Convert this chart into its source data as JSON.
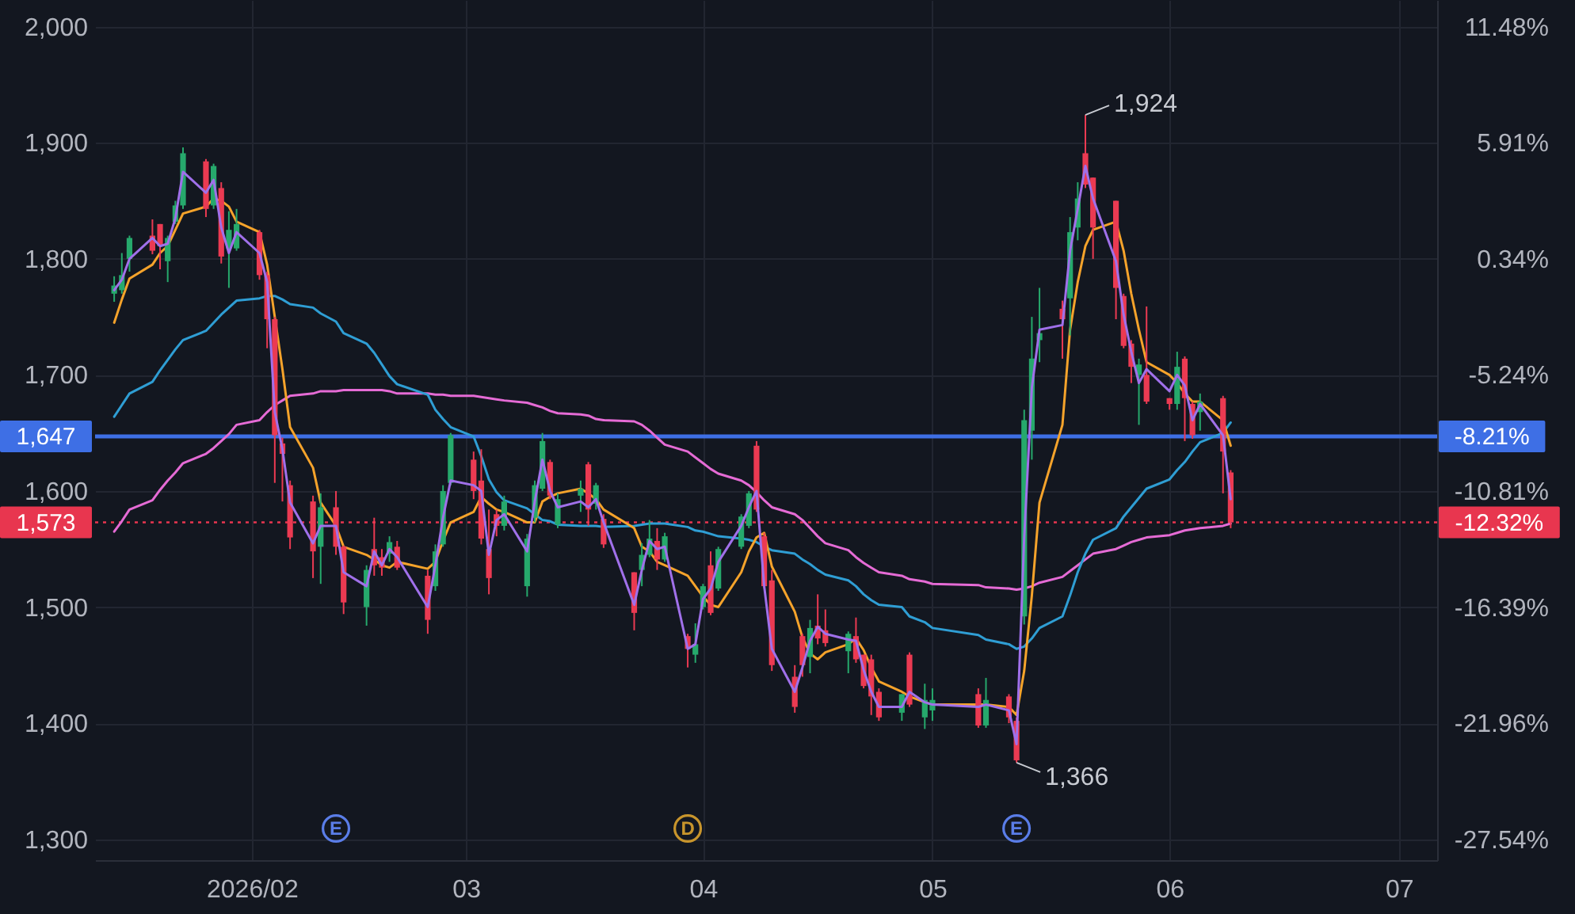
{
  "chart_data": {
    "type": "candlestick",
    "x": [
      "2026-01-14",
      "2026-01-15",
      "2026-01-16",
      "2026-01-19",
      "2026-01-20",
      "2026-01-21",
      "2026-01-22",
      "2026-01-23",
      "2026-01-26",
      "2026-01-27",
      "2026-01-28",
      "2026-01-29",
      "2026-01-30",
      "2026-02-02",
      "2026-02-03",
      "2026-02-04",
      "2026-02-05",
      "2026-02-06",
      "2026-02-09",
      "2026-02-10",
      "2026-02-12",
      "2026-02-13",
      "2026-02-16",
      "2026-02-17",
      "2026-02-18",
      "2026-02-19",
      "2026-02-20",
      "2026-02-24",
      "2026-02-25",
      "2026-02-26",
      "2026-02-27",
      "2026-03-02",
      "2026-03-03",
      "2026-03-04",
      "2026-03-05",
      "2026-03-06",
      "2026-03-09",
      "2026-03-10",
      "2026-03-11",
      "2026-03-12",
      "2026-03-13",
      "2026-03-16",
      "2026-03-17",
      "2026-03-18",
      "2026-03-19",
      "2026-03-23",
      "2026-03-24",
      "2026-03-25",
      "2026-03-26",
      "2026-03-27",
      "2026-03-30",
      "2026-03-31",
      "2026-04-01",
      "2026-04-02",
      "2026-04-03",
      "2026-04-06",
      "2026-04-07",
      "2026-04-08",
      "2026-04-09",
      "2026-04-10",
      "2026-04-13",
      "2026-04-14",
      "2026-04-15",
      "2026-04-16",
      "2026-04-17",
      "2026-04-20",
      "2026-04-21",
      "2026-04-22",
      "2026-04-23",
      "2026-04-24",
      "2026-04-27",
      "2026-04-28",
      "2026-04-30",
      "2026-05-01",
      "2026-05-07",
      "2026-05-08",
      "2026-05-11",
      "2026-05-12",
      "2026-05-13",
      "2026-05-14",
      "2026-05-15",
      "2026-05-18",
      "2026-05-19",
      "2026-05-20",
      "2026-05-21",
      "2026-05-22",
      "2026-05-25",
      "2026-05-26",
      "2026-05-27",
      "2026-05-28",
      "2026-05-29",
      "2026-06-01",
      "2026-06-02",
      "2026-06-03",
      "2026-06-04",
      "2026-06-05",
      "2026-06-08",
      "2026-06-09"
    ],
    "ohlc": [
      [
        1770,
        1785,
        1763,
        1777
      ],
      [
        1773,
        1805,
        1770,
        1786
      ],
      [
        1800,
        1820,
        1789,
        1818
      ],
      [
        1820,
        1834,
        1804,
        1807
      ],
      [
        1830,
        1830,
        1791,
        1811
      ],
      [
        1798,
        1820,
        1780,
        1818
      ],
      [
        1832,
        1850,
        1830,
        1846
      ],
      [
        1846,
        1896,
        1843,
        1891
      ],
      [
        1884,
        1886,
        1836,
        1843
      ],
      [
        1846,
        1882,
        1843,
        1880
      ],
      [
        1861,
        1866,
        1796,
        1802
      ],
      [
        1809,
        1841,
        1775,
        1825
      ],
      [
        1809,
        1843,
        1807,
        1830
      ],
      [
        1823,
        1825,
        1782,
        1786
      ],
      [
        1786,
        1789,
        1723,
        1748
      ],
      [
        1748,
        1750,
        1607,
        1648
      ],
      [
        1641,
        1646,
        1591,
        1632
      ],
      [
        1605,
        1609,
        1550,
        1560
      ],
      [
        1591,
        1596,
        1525,
        1548
      ],
      [
        1552,
        1598,
        1520,
        1586
      ],
      [
        1586,
        1600,
        1545,
        1552
      ],
      [
        1552,
        1553,
        1494,
        1504
      ],
      [
        1500,
        1536,
        1484,
        1532
      ],
      [
        1550,
        1577,
        1527,
        1536
      ],
      [
        1543,
        1550,
        1527,
        1534
      ],
      [
        1546,
        1561,
        1539,
        1556
      ],
      [
        1552,
        1557,
        1532,
        1534
      ],
      [
        1527,
        1532,
        1477,
        1489
      ],
      [
        1518,
        1554,
        1514,
        1548
      ],
      [
        1554,
        1605,
        1552,
        1600
      ],
      [
        1607,
        1650,
        1605,
        1648
      ],
      [
        1627,
        1634,
        1593,
        1600
      ],
      [
        1609,
        1636,
        1554,
        1559
      ],
      [
        1550,
        1584,
        1511,
        1525
      ],
      [
        1580,
        1584,
        1561,
        1570
      ],
      [
        1570,
        1596,
        1566,
        1591
      ],
      [
        1518,
        1563,
        1509,
        1559
      ],
      [
        1577,
        1609,
        1573,
        1605
      ],
      [
        1602,
        1650,
        1600,
        1643
      ],
      [
        1625,
        1627,
        1593,
        1596
      ],
      [
        1571,
        1598,
        1568,
        1593
      ],
      [
        1596,
        1609,
        1582,
        1602
      ],
      [
        1623,
        1625,
        1570,
        1584
      ],
      [
        1589,
        1607,
        1584,
        1605
      ],
      [
        1576,
        1580,
        1551,
        1554
      ],
      [
        1530,
        1530,
        1480,
        1495
      ],
      [
        1532,
        1555,
        1518,
        1545
      ],
      [
        1545,
        1575,
        1543,
        1559
      ],
      [
        1557,
        1568,
        1532,
        1541
      ],
      [
        1541,
        1564,
        1539,
        1561
      ],
      [
        1475,
        1477,
        1448,
        1464
      ],
      [
        1459,
        1486,
        1452,
        1468
      ],
      [
        1500,
        1520,
        1498,
        1518
      ],
      [
        1536,
        1548,
        1493,
        1495
      ],
      [
        1516,
        1552,
        1514,
        1550
      ],
      [
        1552,
        1580,
        1550,
        1578
      ],
      [
        1570,
        1600,
        1568,
        1598
      ],
      [
        1639,
        1643,
        1582,
        1584
      ],
      [
        1561,
        1564,
        1516,
        1518
      ],
      [
        1523,
        1532,
        1445,
        1450
      ],
      [
        1440,
        1450,
        1409,
        1414
      ],
      [
        1475,
        1477,
        1440,
        1450
      ],
      [
        1457,
        1489,
        1443,
        1482
      ],
      [
        1484,
        1511,
        1468,
        1473
      ],
      [
        1480,
        1498,
        1466,
        1469
      ],
      [
        1462,
        1479,
        1443,
        1477
      ],
      [
        1475,
        1491,
        1452,
        1455
      ],
      [
        1459,
        1459,
        1430,
        1432
      ],
      [
        1455,
        1459,
        1407,
        1423
      ],
      [
        1427,
        1430,
        1402,
        1405
      ],
      [
        1409,
        1425,
        1402,
        1425
      ],
      [
        1459,
        1461,
        1414,
        1416
      ],
      [
        1405,
        1434,
        1395,
        1420
      ],
      [
        1411,
        1430,
        1402,
        1420
      ],
      [
        1425,
        1430,
        1396,
        1398
      ],
      [
        1398,
        1439,
        1396,
        1420
      ],
      [
        1423,
        1425,
        1400,
        1405
      ],
      [
        1402,
        1405,
        1366,
        1368
      ],
      [
        1492,
        1670,
        1485,
        1661
      ],
      [
        1652,
        1750,
        1627,
        1714
      ],
      [
        1730,
        1775,
        1711,
        1736
      ],
      [
        1757,
        1764,
        1714,
        1748
      ],
      [
        1766,
        1836,
        1734,
        1823
      ],
      [
        1827,
        1866,
        1816,
        1852
      ],
      [
        1891,
        1924,
        1861,
        1864
      ],
      [
        1870,
        1870,
        1800,
        1827
      ],
      [
        1850,
        1850,
        1748,
        1775
      ],
      [
        1768,
        1770,
        1723,
        1725
      ],
      [
        1727,
        1730,
        1693,
        1707
      ],
      [
        1700,
        1714,
        1657,
        1709
      ],
      [
        1700,
        1759,
        1675,
        1677
      ],
      [
        1680,
        1680,
        1670,
        1675
      ],
      [
        1675,
        1720,
        1670,
        1707
      ],
      [
        1714,
        1716,
        1643,
        1680
      ],
      [
        1675,
        1677,
        1645,
        1648
      ],
      [
        1668,
        1684,
        1652,
        1677
      ],
      [
        1680,
        1682,
        1598,
        1634
      ],
      [
        1616,
        1618,
        1568,
        1573
      ]
    ],
    "colors": [
      "#26a96c",
      "#26a96c",
      "#26a96c",
      "#eb3a52",
      "#eb3a52",
      "#26a96c",
      "#26a96c",
      "#26a96c",
      "#eb3a52",
      "#26a96c",
      "#eb3a52",
      "#26a96c",
      "#26a96c",
      "#eb3a52",
      "#eb3a52",
      "#eb3a52",
      "#eb3a52",
      "#eb3a52",
      "#eb3a52",
      "#26a96c",
      "#eb3a52",
      "#eb3a52",
      "#26a96c",
      "#eb3a52",
      "#eb3a52",
      "#26a96c",
      "#eb3a52",
      "#eb3a52",
      "#26a96c",
      "#26a96c",
      "#26a96c",
      "#eb3a52",
      "#eb3a52",
      "#eb3a52",
      "#eb3a52",
      "#26a96c",
      "#26a96c",
      "#26a96c",
      "#26a96c",
      "#eb3a52",
      "#26a96c",
      "#26a96c",
      "#eb3a52",
      "#26a96c",
      "#eb3a52",
      "#eb3a52",
      "#26a96c",
      "#26a96c",
      "#eb3a52",
      "#26a96c",
      "#eb3a52",
      "#26a96c",
      "#26a96c",
      "#eb3a52",
      "#26a96c",
      "#26a96c",
      "#26a96c",
      "#eb3a52",
      "#eb3a52",
      "#eb3a52",
      "#eb3a52",
      "#eb3a52",
      "#26a96c",
      "#eb3a52",
      "#eb3a52",
      "#26a96c",
      "#eb3a52",
      "#eb3a52",
      "#eb3a52",
      "#eb3a52",
      "#26a96c",
      "#eb3a52",
      "#26a96c",
      "#26a96c",
      "#eb3a52",
      "#26a96c",
      "#eb3a52",
      "#eb3a52",
      "#26a96c",
      "#26a96c",
      "#26a96c",
      "#eb3a52",
      "#26a96c",
      "#26a96c",
      "#eb3a52",
      "#eb3a52",
      "#eb3a52",
      "#eb3a52",
      "#eb3a52",
      "#26a96c",
      "#eb3a52",
      "#eb3a52",
      "#26a96c",
      "#eb3a52",
      "#eb3a52",
      "#26a96c",
      "#eb3a52",
      "#eb3a52"
    ],
    "series": [
      {
        "type": "line",
        "color": "#e56bd5",
        "values": [
          1565,
          1574,
          1584,
          1592,
          1601,
          1609,
          1616,
          1624,
          1632,
          1637,
          1643,
          1649,
          1657,
          1661,
          1668,
          1674,
          1678,
          1682,
          1684,
          1686,
          1686,
          1687,
          1687,
          1687,
          1687,
          1686,
          1684,
          1684,
          1683,
          1683,
          1682,
          1682,
          1681,
          1680,
          1679,
          1678,
          1676,
          1674,
          1672,
          1669,
          1667,
          1666,
          1665,
          1662,
          1661,
          1660,
          1657,
          1652,
          1646,
          1640,
          1634,
          1629,
          1624,
          1619,
          1615,
          1609,
          1605,
          1599,
          1592,
          1586,
          1580,
          1575,
          1568,
          1561,
          1555,
          1549,
          1543,
          1538,
          1534,
          1530,
          1527,
          1524,
          1522,
          1520,
          1519,
          1517,
          1516,
          1515,
          1516,
          1518,
          1521,
          1526,
          1531,
          1536,
          1541,
          1546,
          1550,
          1553,
          1556,
          1558,
          1560,
          1562,
          1564,
          1566,
          1567,
          1568,
          1570,
          1572
        ]
      },
      {
        "type": "line",
        "color": "#2f9ed4",
        "values": [
          1664,
          1674,
          1684,
          1694,
          1704,
          1713,
          1722,
          1730,
          1738,
          1745,
          1752,
          1758,
          1764,
          1766,
          1768,
          1768,
          1765,
          1761,
          1758,
          1753,
          1746,
          1736,
          1727,
          1719,
          1709,
          1699,
          1692,
          1683,
          1670,
          1662,
          1655,
          1647,
          1630,
          1610,
          1599,
          1592,
          1585,
          1580,
          1575,
          1574,
          1571,
          1570,
          1570,
          1570,
          1569,
          1570,
          1571,
          1572,
          1572,
          1572,
          1569,
          1566,
          1565,
          1563,
          1561,
          1559,
          1558,
          1556,
          1552,
          1549,
          1546,
          1541,
          1537,
          1532,
          1528,
          1523,
          1518,
          1511,
          1506,
          1502,
          1500,
          1492,
          1487,
          1482,
          1476,
          1472,
          1468,
          1464,
          1466,
          1473,
          1482,
          1492,
          1510,
          1530,
          1546,
          1558,
          1568,
          1578,
          1586,
          1594,
          1602,
          1610,
          1618,
          1625,
          1634,
          1642,
          1650,
          1659
        ]
      },
      {
        "type": "line",
        "color": "#f5a32b",
        "values": [
          1745,
          1765,
          1783,
          1795,
          1805,
          1811,
          1825,
          1839,
          1845,
          1852,
          1850,
          1845,
          1832,
          1823,
          1795,
          1750,
          1705,
          1655,
          1620,
          1590,
          1570,
          1552,
          1545,
          1541,
          1536,
          1534,
          1539,
          1533,
          1539,
          1557,
          1573,
          1582,
          1595,
          1589,
          1584,
          1582,
          1573,
          1573,
          1591,
          1595,
          1598,
          1602,
          1598,
          1593,
          1584,
          1568,
          1552,
          1548,
          1539,
          1536,
          1527,
          1518,
          1509,
          1502,
          1500,
          1530,
          1548,
          1560,
          1564,
          1535,
          1496,
          1474,
          1460,
          1455,
          1461,
          1468,
          1473,
          1463,
          1448,
          1436,
          1427,
          1423,
          1418,
          1416,
          1416,
          1416,
          1414,
          1407,
          1445,
          1510,
          1590,
          1657,
          1739,
          1780,
          1811,
          1825,
          1832,
          1807,
          1770,
          1739,
          1711,
          1700,
          1693,
          1684,
          1677,
          1677,
          1661,
          1639
        ]
      },
      {
        "type": "line",
        "color": "#a070ea",
        "values": [
          1773,
          1782,
          1800,
          1818,
          1811,
          1813,
          1835,
          1875,
          1857,
          1868,
          1827,
          1805,
          1823,
          1805,
          1780,
          1668,
          1636,
          1590,
          1555,
          1570,
          1570,
          1530,
          1518,
          1548,
          1536,
          1550,
          1543,
          1500,
          1536,
          1577,
          1609,
          1605,
          1600,
          1545,
          1575,
          1580,
          1548,
          1591,
          1627,
          1600,
          1586,
          1591,
          1586,
          1593,
          1573,
          1502,
          1532,
          1557,
          1550,
          1552,
          1464,
          1468,
          1507,
          1516,
          1539,
          1570,
          1586,
          1600,
          1518,
          1464,
          1427,
          1448,
          1471,
          1483,
          1477,
          1472,
          1471,
          1446,
          1427,
          1414,
          1414,
          1427,
          1418,
          1416,
          1414,
          1416,
          1411,
          1382,
          1560,
          1689,
          1739,
          1743,
          1807,
          1843,
          1880,
          1852,
          1798,
          1752,
          1720,
          1693,
          1705,
          1686,
          1700,
          1691,
          1661,
          1675,
          1648,
          1593
        ]
      }
    ],
    "xlim": [
      "2026-01-11T12:00",
      "2026-07-06"
    ],
    "xticks": [
      {
        "value": "2026-02",
        "label": "2026/02"
      },
      {
        "value": "2026-03",
        "label": "03"
      },
      {
        "value": "2026-04",
        "label": "04"
      },
      {
        "value": "2026-05",
        "label": "05"
      },
      {
        "value": "2026-06",
        "label": "06"
      },
      {
        "value": "2026-07",
        "label": "07"
      }
    ],
    "ylim": [
      1282,
      2023
    ],
    "yticks": [
      {
        "value": 1300,
        "label": "1,300"
      },
      {
        "value": 1400,
        "label": "1,400"
      },
      {
        "value": 1500,
        "label": "1,500"
      },
      {
        "value": 1600,
        "label": "1,600"
      },
      {
        "value": 1700,
        "label": "1,700"
      },
      {
        "value": 1800,
        "label": "1,800"
      },
      {
        "value": 1900,
        "label": "1,900"
      },
      {
        "value": 2000,
        "label": "2,000"
      }
    ],
    "y2lim": [
      -28.54,
      12.76
    ],
    "y2ticks": [
      {
        "value": -27.54,
        "label": "-27.54%"
      },
      {
        "value": -21.96,
        "label": "-21.96%"
      },
      {
        "value": -16.39,
        "label": "-16.39%"
      },
      {
        "value": -10.81,
        "label": "-10.81%"
      },
      {
        "value": -5.24,
        "label": "-5.24%"
      },
      {
        "value": 0.34,
        "label": "0.34%"
      },
      {
        "value": 5.91,
        "label": "5.91%"
      },
      {
        "value": 11.48,
        "label": "11.48%"
      }
    ],
    "ref_lines": [
      {
        "axis": "y",
        "value": 1647,
        "label": "1,647",
        "color": "#3e6fe5",
        "line_style": "solid"
      },
      {
        "axis": "y",
        "value": 1573,
        "label": "1,573",
        "color": "#e8364f",
        "line_style": "dotted"
      }
    ],
    "annotations": [
      {
        "text": "1,924",
        "x": "2026-05-21",
        "y": 1924
      },
      {
        "text": "1,366",
        "x": "2026-05-12",
        "y": 1366
      },
      {
        "text": "-8.21%",
        "x": "2026-07-06",
        "y": 1647
      },
      {
        "text": "-12.32%",
        "x": "2026-07-06",
        "y": 1573
      },
      {
        "text": "E",
        "x": "2026-02-12"
      },
      {
        "text": "D",
        "x": "2026-03-30"
      },
      {
        "text": "E",
        "x": "2026-05-12"
      }
    ],
    "grid": true
  }
}
